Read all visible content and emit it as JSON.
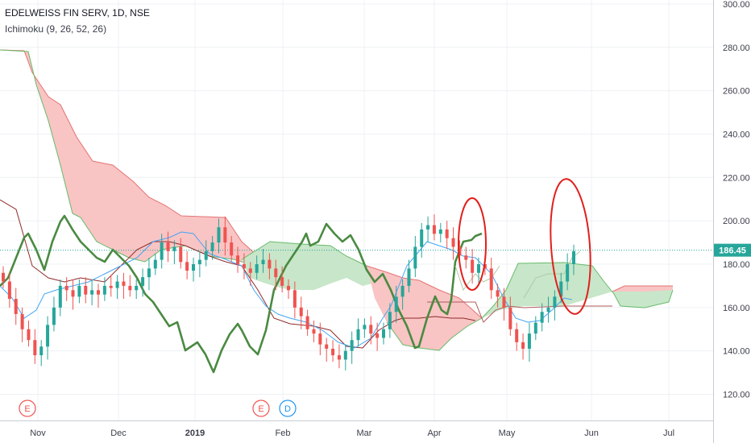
{
  "header": {
    "title": "EDELWEISS FIN SERV, 1D, NSE",
    "indicator": "Ichimoku (9, 26, 52, 26)"
  },
  "chart_data": {
    "type": "candlestick",
    "y_axis": {
      "ticks": [
        "300.00",
        "280.00",
        "260.00",
        "240.00",
        "220.00",
        "200.00",
        "180.00",
        "160.00",
        "140.00",
        "120.00"
      ],
      "ylim": [
        108,
        300
      ]
    },
    "x_axis": {
      "ticks": [
        "Nov",
        "Dec",
        "2019",
        "Feb",
        "Mar",
        "Apr",
        "May",
        "Jun",
        "Jul"
      ]
    },
    "last_price": {
      "value": 186.45,
      "label": "186.45"
    },
    "events": [
      {
        "letter": "E",
        "near": "Nov"
      },
      {
        "letter": "E",
        "near": "Feb"
      },
      {
        "letter": "D",
        "near": "Feb"
      }
    ],
    "candles_close_approx": [
      172,
      164,
      157,
      150,
      145,
      138,
      142,
      152,
      160,
      170,
      168,
      165,
      170,
      166,
      168,
      166,
      170,
      169,
      172,
      170,
      168,
      170,
      174,
      178,
      182,
      190,
      186,
      188,
      181,
      177,
      180,
      182,
      186,
      190,
      197,
      190,
      184,
      180,
      178,
      176,
      180,
      182,
      178,
      174,
      170,
      168,
      160,
      156,
      150,
      148,
      143,
      141,
      138,
      136,
      140,
      145,
      150,
      152,
      148,
      146,
      150,
      158,
      165,
      170,
      178,
      188,
      196,
      198,
      194,
      196,
      192,
      188,
      184,
      182,
      176,
      180,
      178,
      168,
      165,
      160,
      150,
      144,
      141,
      148,
      153,
      158,
      160,
      165,
      172,
      180,
      186
    ],
    "annotations": [
      {
        "shape": "ellipse",
        "color": "#e0201c",
        "around": "Apr pullback"
      },
      {
        "shape": "ellipse",
        "color": "#e0201c",
        "around": "late May rally"
      }
    ],
    "colors": {
      "up": "#26a69a",
      "down": "#ef5350",
      "cloud_bear": "#f9c4c4",
      "cloud_bull": "#c8e6c9",
      "lagging_span": "#4a8a42",
      "base_line": "#8e2a2a",
      "conversion_line": "#42a5f5",
      "price_line": "#26a69a"
    }
  }
}
